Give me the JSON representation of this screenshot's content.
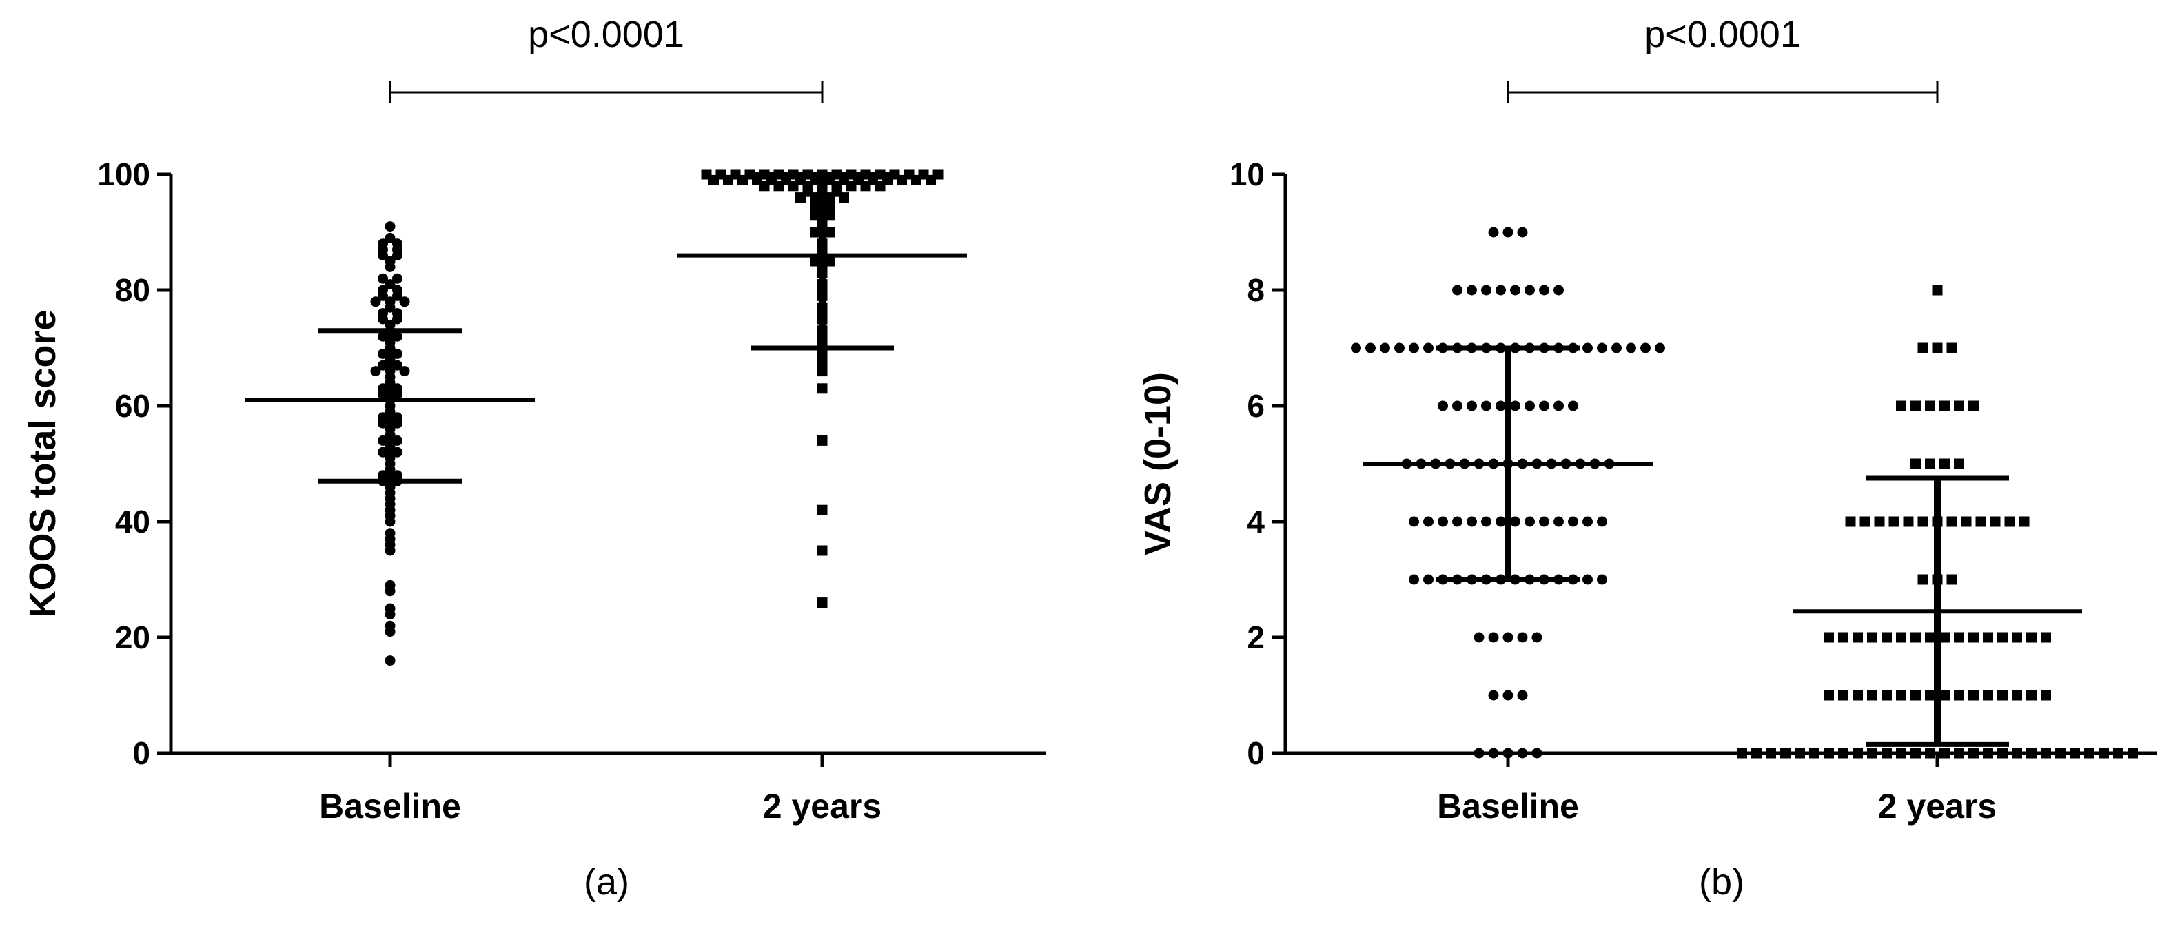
{
  "chart_data": [
    {
      "type": "scatter",
      "panel_label": "(a)",
      "ylabel": "KOOS total score",
      "xlabel": "",
      "ylim": [
        0,
        100
      ],
      "yticks": [
        0,
        20,
        40,
        60,
        80,
        100
      ],
      "categories": [
        "Baseline",
        "2 years"
      ],
      "significance": {
        "between": [
          "Baseline",
          "2 years"
        ],
        "label": "p<0.0001"
      },
      "series": [
        {
          "category": "Baseline",
          "marker": "circle",
          "mean": 61,
          "sd_upper": 73,
          "sd_lower": 47,
          "values": [
            91,
            89,
            88,
            88,
            87,
            87,
            86,
            86,
            85,
            84,
            82,
            82,
            81,
            80,
            80,
            79,
            79,
            78,
            78,
            78,
            77,
            76,
            76,
            75,
            75,
            74,
            73,
            72,
            72,
            71,
            70,
            69,
            69,
            68,
            67,
            67,
            66,
            66,
            66,
            65,
            64,
            63,
            63,
            62,
            62,
            61,
            60,
            59,
            58,
            58,
            57,
            57,
            56,
            55,
            54,
            54,
            53,
            52,
            52,
            51,
            50,
            49,
            48,
            48,
            47,
            47,
            46,
            45,
            44,
            43,
            42,
            41,
            40,
            38,
            37,
            36,
            35,
            29,
            28,
            25,
            24,
            22,
            21,
            16
          ]
        },
        {
          "category": "2 years",
          "marker": "square",
          "mean": 86,
          "sd_upper": 100,
          "sd_lower": 70,
          "values": [
            100,
            100,
            100,
            100,
            100,
            100,
            100,
            100,
            100,
            100,
            100,
            100,
            100,
            100,
            100,
            100,
            100,
            99,
            99,
            99,
            99,
            99,
            99,
            99,
            99,
            99,
            99,
            99,
            99,
            99,
            99,
            99,
            99,
            98,
            98,
            98,
            98,
            98,
            98,
            98,
            98,
            98,
            97,
            97,
            97,
            96,
            96,
            96,
            96,
            95,
            95,
            94,
            94,
            93,
            93,
            92,
            91,
            90,
            90,
            88,
            87,
            86,
            85,
            85,
            84,
            83,
            81,
            80,
            79,
            77,
            76,
            75,
            73,
            72,
            71,
            70,
            69,
            68,
            67,
            66,
            63,
            54,
            42,
            35,
            26
          ]
        }
      ]
    },
    {
      "type": "scatter",
      "panel_label": "(b)",
      "ylabel": "VAS (0-10)",
      "xlabel": "",
      "ylim": [
        0,
        10
      ],
      "yticks": [
        0,
        2,
        4,
        6,
        8,
        10
      ],
      "categories": [
        "Baseline",
        "2 years"
      ],
      "significance": {
        "between": [
          "Baseline",
          "2 years"
        ],
        "label": "p<0.0001"
      },
      "series": [
        {
          "category": "Baseline",
          "marker": "circle",
          "mean": 5,
          "sd_upper": 7,
          "sd_lower": 3,
          "values": [
            9,
            9,
            9,
            8,
            8,
            8,
            8,
            8,
            8,
            8,
            8,
            7,
            7,
            7,
            7,
            7,
            7,
            7,
            7,
            7,
            7,
            7,
            7,
            7,
            7,
            7,
            7,
            7,
            7,
            7,
            7,
            7,
            7,
            6,
            6,
            6,
            6,
            6,
            6,
            6,
            6,
            6,
            6,
            5,
            5,
            5,
            5,
            5,
            5,
            5,
            5,
            5,
            5,
            5,
            5,
            5,
            5,
            5,
            4,
            4,
            4,
            4,
            4,
            4,
            4,
            4,
            4,
            4,
            4,
            4,
            4,
            4,
            3,
            3,
            3,
            3,
            3,
            3,
            3,
            3,
            3,
            3,
            3,
            3,
            3,
            3,
            2,
            2,
            2,
            2,
            2,
            1,
            1,
            1,
            0,
            0,
            0,
            0,
            0
          ]
        },
        {
          "category": "2 years",
          "marker": "square",
          "mean": 2.45,
          "sd_upper": 4.75,
          "sd_lower": 0.15,
          "values": [
            8,
            7,
            7,
            7,
            6,
            6,
            6,
            6,
            6,
            6,
            5,
            5,
            5,
            5,
            4,
            4,
            4,
            4,
            4,
            4,
            4,
            4,
            4,
            4,
            4,
            4,
            4,
            3,
            3,
            3,
            2,
            2,
            2,
            2,
            2,
            2,
            2,
            2,
            2,
            2,
            2,
            2,
            2,
            2,
            2,
            2,
            1,
            1,
            1,
            1,
            1,
            1,
            1,
            1,
            1,
            1,
            1,
            1,
            1,
            1,
            1,
            1,
            0,
            0,
            0,
            0,
            0,
            0,
            0,
            0,
            0,
            0,
            0,
            0,
            0,
            0,
            0,
            0,
            0,
            0,
            0,
            0,
            0,
            0,
            0,
            0,
            0,
            0,
            0,
            0
          ]
        }
      ]
    }
  ]
}
